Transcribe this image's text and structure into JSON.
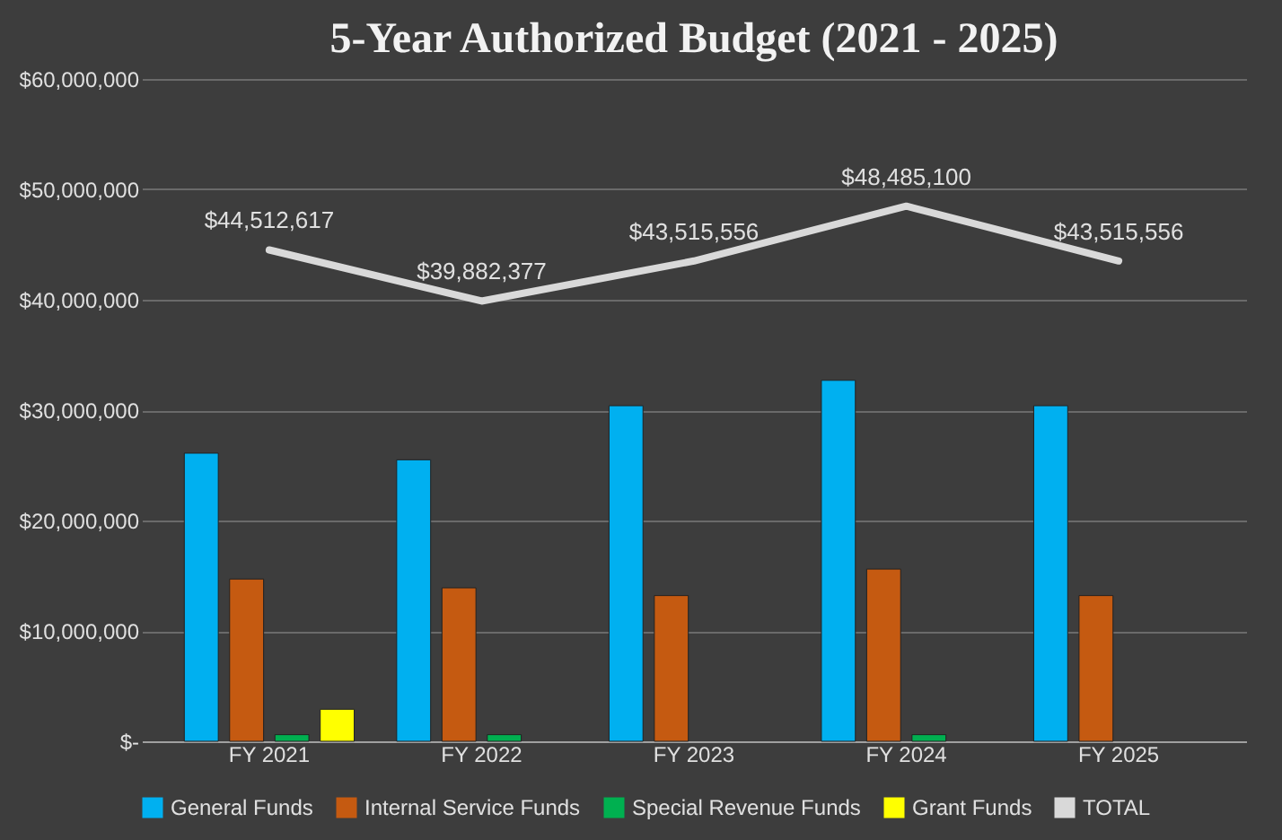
{
  "chart_data": {
    "type": "bar",
    "title": "5-Year Authorized Budget (2021 - 2025)",
    "categories": [
      "FY 2021",
      "FY 2022",
      "FY 2023",
      "FY 2024",
      "FY 2025"
    ],
    "series": [
      {
        "name": "General Funds",
        "color": "#00b0f0",
        "values": [
          26100000,
          25500000,
          30400000,
          32700000,
          30400000
        ]
      },
      {
        "name": "Internal Service Funds",
        "color": "#c55a11",
        "values": [
          14700000,
          13900000,
          13200000,
          15600000,
          13200000
        ]
      },
      {
        "name": "Special Revenue Funds",
        "color": "#00b050",
        "values": [
          600000,
          600000,
          null,
          600000,
          null
        ]
      },
      {
        "name": "Grant Funds",
        "color": "#ffff00",
        "values": [
          2900000,
          null,
          null,
          null,
          null
        ]
      },
      {
        "name": "TOTAL",
        "type": "line",
        "color": "#d9d9d9",
        "values": [
          44512617,
          39882377,
          43515556,
          48485100,
          43515556
        ],
        "value_labels": [
          "$44,512,617",
          "$39,882,377",
          "$43,515,556",
          "$48,485,100",
          "$43,515,556"
        ]
      }
    ],
    "ylim": [
      0,
      60000000
    ],
    "yticks": [
      {
        "value": 0,
        "label": "$-"
      },
      {
        "value": 10000000,
        "label": "$10,000,000"
      },
      {
        "value": 20000000,
        "label": "$20,000,000"
      },
      {
        "value": 30000000,
        "label": "$30,000,000"
      },
      {
        "value": 40000000,
        "label": "$40,000,000"
      },
      {
        "value": 50000000,
        "label": "$50,000,000"
      },
      {
        "value": 60000000,
        "label": "$60,000,000"
      }
    ],
    "grid": "y",
    "legend": "bottom"
  }
}
